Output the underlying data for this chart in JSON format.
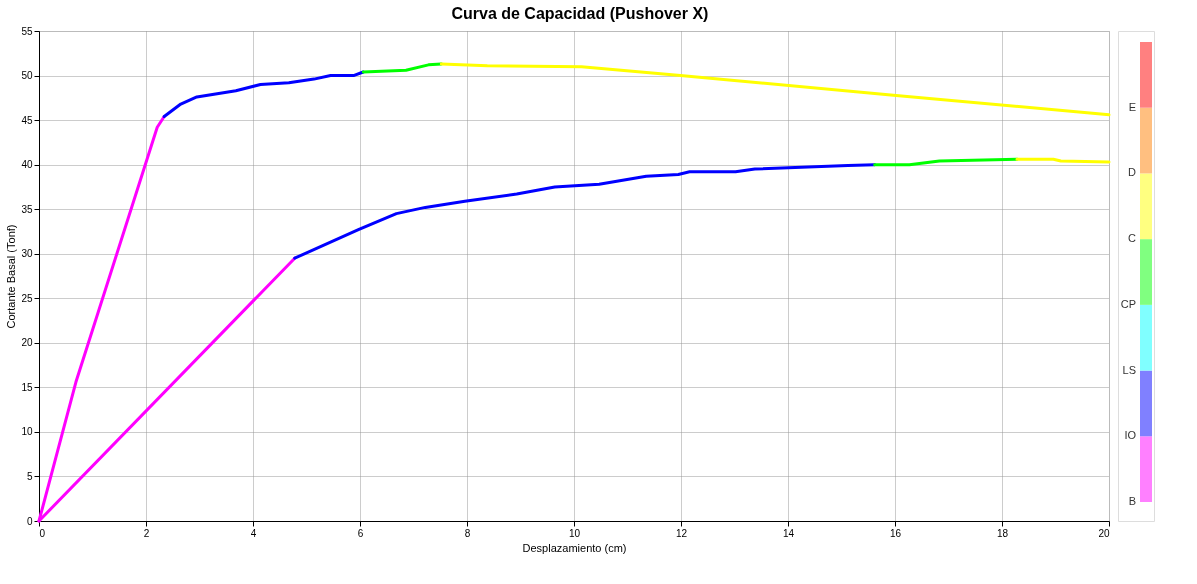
{
  "chart_data": [
    {
      "type": "line",
      "title": "Curva de Capacidad (Pushover X)",
      "xlabel": "Desplazamiento (cm)",
      "ylabel": "Cortante Basal (Tonf)",
      "xlim": [
        0,
        20
      ],
      "ylim": [
        0,
        55
      ],
      "xticks": [
        0,
        2,
        4,
        6,
        8,
        10,
        12,
        14,
        16,
        18,
        20
      ],
      "yticks": [
        0,
        5,
        10,
        15,
        20,
        25,
        30,
        35,
        40,
        45,
        50,
        55
      ],
      "grid": true,
      "series": [
        {
          "color": "#ff00ff",
          "x": [
            0,
            0.69,
            2.21,
            2.34
          ],
          "values": [
            0,
            15.6,
            44.2,
            45.4
          ]
        },
        {
          "color": "#0000ff",
          "x": [
            2.34,
            2.65,
            2.95,
            3.68,
            4.14,
            4.67,
            5.14,
            5.45,
            5.88,
            6.06
          ],
          "values": [
            45.4,
            46.8,
            47.6,
            48.3,
            49.0,
            49.2,
            49.6,
            50.0,
            50.0,
            50.4
          ]
        },
        {
          "color": "#00ff00",
          "x": [
            6.06,
            6.86,
            7.28,
            7.52
          ],
          "values": [
            50.4,
            50.6,
            51.2,
            51.3
          ]
        },
        {
          "color": "#ffff00",
          "x": [
            7.52,
            8.38,
            10.14,
            11.99,
            15.97,
            20
          ],
          "values": [
            51.3,
            51.1,
            51.0,
            50.0,
            47.8,
            45.6
          ]
        },
        {
          "color": "#ff00ff",
          "x": [
            0,
            4.78
          ],
          "values": [
            0,
            29.5
          ]
        },
        {
          "color": "#0000ff",
          "x": [
            4.78,
            5.97,
            6.68,
            7.22,
            7.96,
            8.93,
            9.64,
            10.47,
            11.35,
            11.95,
            12.16,
            13.02,
            13.38,
            15.12,
            15.62
          ],
          "values": [
            29.5,
            32.7,
            34.5,
            35.2,
            35.9,
            36.7,
            37.5,
            37.8,
            38.7,
            38.9,
            39.2,
            39.2,
            39.5,
            39.9,
            40.0
          ]
        },
        {
          "color": "#00ff00",
          "x": [
            15.62,
            16.27,
            16.83,
            18.28
          ],
          "values": [
            40.0,
            40.0,
            40.4,
            40.6
          ]
        },
        {
          "color": "#ffff00",
          "x": [
            18.28,
            18.96,
            19.1,
            20
          ],
          "values": [
            40.6,
            40.6,
            40.4,
            40.3
          ]
        }
      ]
    },
    {
      "type": "other",
      "categories": [
        "B",
        "IO",
        "LS",
        "CP",
        "C",
        "D",
        "E"
      ],
      "colors": [
        "#ff80ff",
        "#8080ff",
        "#80ffff",
        "#80ff80",
        "#ffff80",
        "#ffbf80",
        "#ff8080"
      ]
    }
  ]
}
